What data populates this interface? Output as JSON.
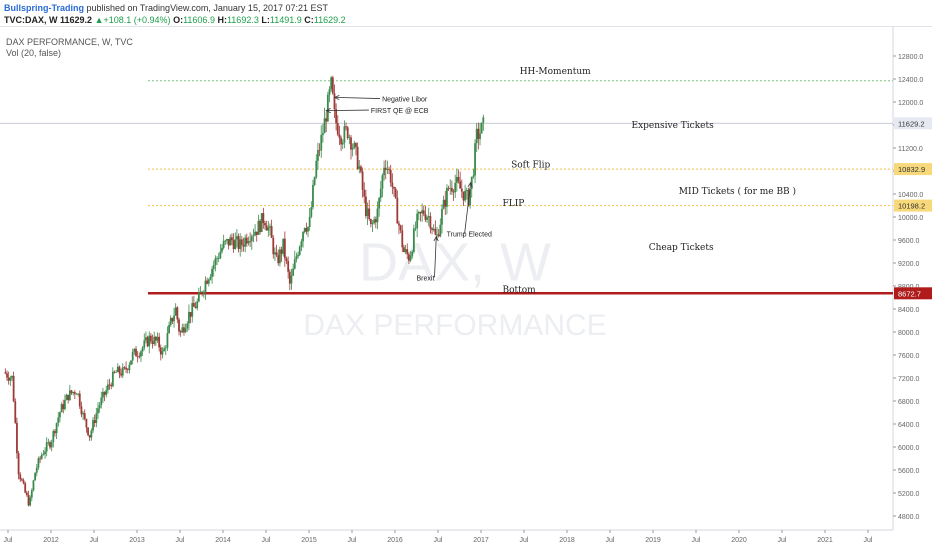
{
  "header": {
    "author": "Bullspring-Trading",
    "published_text": " published on TradingView.com, January 15, 2017 07:21 EST",
    "symbol": "TVC:DAX, W",
    "last": "11629.2",
    "change": "+108.1 (+0.94%)",
    "open_label": "O:",
    "open": "11606.9",
    "high_label": "H:",
    "high": "11692.3",
    "low_label": "L:",
    "low": "11491.9",
    "close_label": "C:",
    "close": "11629.2"
  },
  "legend": {
    "instrument": "DAX PERFORMANCE, W, TVC",
    "volume": "Vol (20, false)"
  },
  "colors": {
    "up_candle": "#3a8a4c",
    "down_candle": "#9c3a36",
    "bottom_line": "#b01c1c",
    "dotted_green": "#7fc47f",
    "dotted_yellow": "#f0c14b",
    "last_price_badge": "#e6e9f2",
    "accent": "#2a6bd6"
  },
  "chart_data": {
    "type": "candlestick",
    "watermark_symbol": "DAX, W",
    "watermark_name": "DAX PERFORMANCE",
    "ylim": [
      4600,
      12800
    ],
    "y_ticks": [
      4800,
      5200,
      5600,
      6000,
      6400,
      6800,
      7200,
      7600,
      8000,
      8400,
      8800,
      9200,
      9600,
      10000,
      10400,
      10800,
      11200,
      11600,
      12000,
      12400,
      12800
    ],
    "y_tick_labels": [
      "4800.0",
      "5200.0",
      "5600.0",
      "6000.0",
      "6400.0",
      "6800.0",
      "7200.0",
      "7600.0",
      "8000.0",
      "8400.0",
      "8800.0",
      "9200.0",
      "9600.0",
      "10000.0",
      "10400.0",
      "10800.0",
      "11200.0",
      "11600.0",
      "12000.0",
      "12400.0",
      "12800.0"
    ],
    "x_ticks": [
      "Jul",
      "2012",
      "Jul",
      "2013",
      "Jul",
      "2014",
      "Jul",
      "2015",
      "Jul",
      "2016",
      "Jul",
      "2017",
      "Jul",
      "2018",
      "Jul",
      "2019",
      "Jul",
      "2020",
      "Jul",
      "2021",
      "Jul"
    ],
    "x_tick_dates": [
      2011.5,
      2012.0,
      2012.5,
      2013.0,
      2013.5,
      2014.0,
      2014.5,
      2015.0,
      2015.5,
      2016.0,
      2016.5,
      2017.0,
      2017.5,
      2018.0,
      2018.5,
      2019.0,
      2019.5,
      2020.0,
      2020.5,
      2021.0,
      2021.5
    ],
    "xlim": [
      2011.45,
      2021.85
    ],
    "price_path": [
      [
        2011.45,
        7300
      ],
      [
        2011.55,
        7200
      ],
      [
        2011.62,
        5600
      ],
      [
        2011.7,
        5200
      ],
      [
        2011.75,
        5000
      ],
      [
        2011.82,
        5600
      ],
      [
        2011.9,
        5900
      ],
      [
        2012.0,
        6100
      ],
      [
        2012.1,
        6600
      ],
      [
        2012.2,
        6900
      ],
      [
        2012.3,
        7000
      ],
      [
        2012.38,
        6500
      ],
      [
        2012.45,
        6200
      ],
      [
        2012.55,
        6700
      ],
      [
        2012.65,
        7000
      ],
      [
        2012.75,
        7300
      ],
      [
        2012.85,
        7300
      ],
      [
        2012.95,
        7600
      ],
      [
        2013.05,
        7700
      ],
      [
        2013.15,
        7900
      ],
      [
        2013.25,
        7800
      ],
      [
        2013.3,
        7600
      ],
      [
        2013.4,
        8200
      ],
      [
        2013.45,
        8400
      ],
      [
        2013.5,
        7950
      ],
      [
        2013.6,
        8300
      ],
      [
        2013.7,
        8500
      ],
      [
        2013.8,
        8900
      ],
      [
        2013.9,
        9200
      ],
      [
        2014.0,
        9500
      ],
      [
        2014.1,
        9600
      ],
      [
        2014.2,
        9500
      ],
      [
        2014.3,
        9700
      ],
      [
        2014.4,
        9800
      ],
      [
        2014.48,
        10000
      ],
      [
        2014.55,
        9700
      ],
      [
        2014.62,
        9200
      ],
      [
        2014.7,
        9500
      ],
      [
        2014.78,
        8800
      ],
      [
        2014.85,
        9300
      ],
      [
        2014.95,
        9900
      ],
      [
        2015.0,
        9800
      ],
      [
        2015.08,
        10900
      ],
      [
        2015.15,
        11400
      ],
      [
        2015.2,
        11800
      ],
      [
        2015.26,
        12300
      ],
      [
        2015.3,
        11700
      ],
      [
        2015.38,
        11400
      ],
      [
        2015.45,
        11500
      ],
      [
        2015.52,
        11200
      ],
      [
        2015.58,
        10900
      ],
      [
        2015.65,
        10200
      ],
      [
        2015.72,
        9800
      ],
      [
        2015.8,
        10100
      ],
      [
        2015.88,
        11000
      ],
      [
        2015.95,
        10700
      ],
      [
        2016.03,
        10000
      ],
      [
        2016.1,
        9400
      ],
      [
        2016.17,
        9300
      ],
      [
        2016.25,
        9900
      ],
      [
        2016.33,
        10100
      ],
      [
        2016.4,
        10000
      ],
      [
        2016.48,
        9600
      ],
      [
        2016.55,
        10100
      ],
      [
        2016.62,
        10500
      ],
      [
        2016.7,
        10600
      ],
      [
        2016.78,
        10450
      ],
      [
        2016.85,
        10300
      ],
      [
        2016.9,
        10700
      ],
      [
        2016.95,
        11400
      ],
      [
        2017.0,
        11500
      ],
      [
        2017.04,
        11629
      ]
    ],
    "levels": [
      {
        "name": "HH-Momentum",
        "value": 12370,
        "style": "dotted-green"
      },
      {
        "name": "Expensive Tickets",
        "value": 11629,
        "style": "solid-grey"
      },
      {
        "name": "Soft Flip",
        "value": 10833,
        "style": "dotted-yellow"
      },
      {
        "name": "FLIP",
        "value": 10198,
        "style": "dotted-yellow"
      },
      {
        "name": "Bottom",
        "value": 8673,
        "style": "solid-red"
      }
    ],
    "price_badges": [
      {
        "label": "11629.2",
        "value": 11629.2,
        "style": "grey"
      },
      {
        "label": "10832.9",
        "value": 10832.9,
        "style": "yellow"
      },
      {
        "label": "10198.2",
        "value": 10198.2,
        "style": "yellow"
      },
      {
        "label": "8672.7",
        "value": 8672.7,
        "style": "red"
      }
    ],
    "zone_labels": [
      {
        "text": "HH-Momentum",
        "date": 2017.45,
        "value": 12540
      },
      {
        "text": "Expensive Tickets",
        "date": 2018.75,
        "value": 11600
      },
      {
        "text": "Soft Flip",
        "date": 2017.35,
        "value": 10910
      },
      {
        "text": "MID Tickets ( for me BB )",
        "date": 2019.3,
        "value": 10450
      },
      {
        "text": "FLIP",
        "date": 2017.25,
        "value": 10240
      },
      {
        "text": "Cheap Tickets",
        "date": 2018.95,
        "value": 9480
      },
      {
        "text": "Bottom",
        "date": 2017.25,
        "value": 8735
      }
    ],
    "annotations": [
      {
        "text": "Negative Libor",
        "date": 2015.85,
        "value": 12060,
        "arrow_to_date": 2015.3,
        "arrow_to_value": 12080
      },
      {
        "text": "FIRST QE @ ECB",
        "date": 2015.72,
        "value": 11860,
        "arrow_to_date": 2015.2,
        "arrow_to_value": 11850
      },
      {
        "text": "Trump Elected",
        "date": 2016.6,
        "value": 9710,
        "arrow_to_date": 2016.88,
        "arrow_to_value": 10600
      },
      {
        "text": "Brexit",
        "date": 2016.25,
        "value": 8950,
        "arrow_to_date": 2016.48,
        "arrow_to_value": 9660
      }
    ]
  }
}
